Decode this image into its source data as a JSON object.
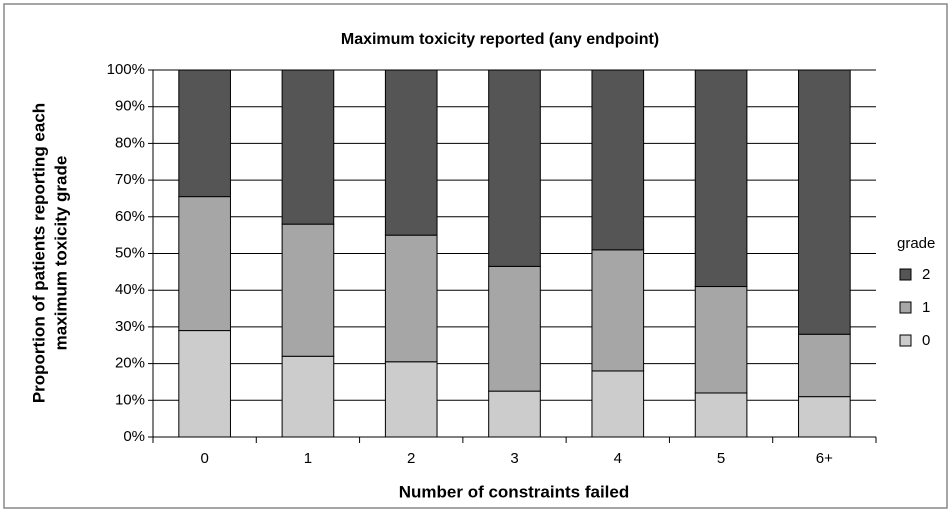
{
  "chart_data": {
    "type": "stacked_bar",
    "title": "Maximum toxicity reported (any endpoint)",
    "x_label": "Number of constraints failed",
    "y_label": [
      "Proportion of patients reporting each",
      "maximum toxicity grade"
    ],
    "legend_title": "grade",
    "categories": [
      "0",
      "1",
      "2",
      "3",
      "4",
      "5",
      "6+"
    ],
    "series": [
      {
        "name": "0",
        "color": "#cccccc",
        "values": [
          29,
          22,
          20.5,
          12.5,
          18,
          12,
          11
        ]
      },
      {
        "name": "1",
        "color": "#a6a6a6",
        "values": [
          36.5,
          36,
          34.5,
          34,
          33,
          29,
          17
        ]
      },
      {
        "name": "2",
        "color": "#555555",
        "values": [
          34.5,
          42,
          45,
          53.5,
          49,
          59,
          72
        ]
      }
    ],
    "ylim": [
      0,
      100
    ],
    "yticks": [
      {
        "value": 0,
        "label": "0%"
      },
      {
        "value": 10,
        "label": "10%"
      },
      {
        "value": 20,
        "label": "20%"
      },
      {
        "value": 30,
        "label": "30%"
      },
      {
        "value": 40,
        "label": "40%"
      },
      {
        "value": 50,
        "label": "50%"
      },
      {
        "value": 60,
        "label": "60%"
      },
      {
        "value": 70,
        "label": "70%"
      },
      {
        "value": 80,
        "label": "80%"
      },
      {
        "value": 90,
        "label": "90%"
      },
      {
        "value": 100,
        "label": "100%"
      }
    ],
    "grid": true,
    "legend": "right"
  }
}
